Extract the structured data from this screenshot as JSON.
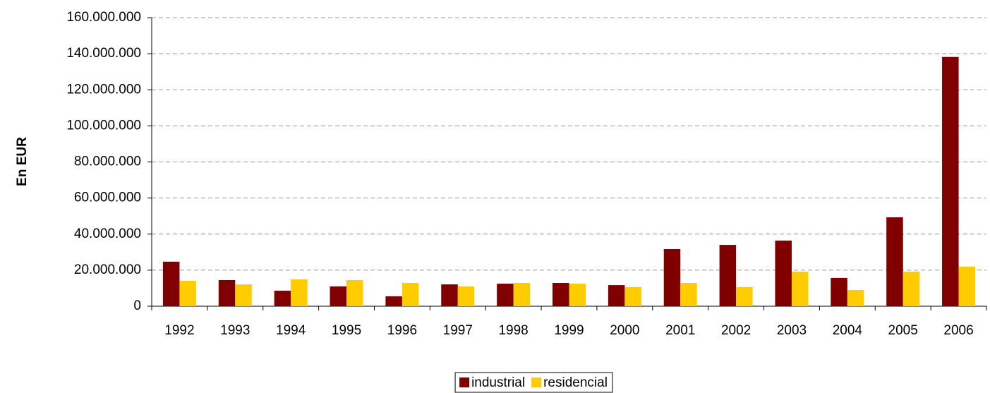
{
  "chart_data": {
    "type": "bar",
    "y_label": "En EUR",
    "categories": [
      "1992",
      "1993",
      "1994",
      "1995",
      "1996",
      "1997",
      "1998",
      "1999",
      "2000",
      "2001",
      "2002",
      "2003",
      "2004",
      "2005",
      "2006"
    ],
    "series": [
      {
        "name": "industrial",
        "color": "#800000",
        "values": [
          24700000,
          14500000,
          8600000,
          11000000,
          5500000,
          12100000,
          12500000,
          12900000,
          11700000,
          31700000,
          34000000,
          36400000,
          15700000,
          49300000,
          138200000
        ]
      },
      {
        "name": "residencial",
        "color": "#ffcc00",
        "values": [
          14100000,
          12100000,
          14900000,
          14500000,
          12900000,
          11000000,
          12900000,
          12500000,
          10600000,
          12900000,
          10600000,
          19200000,
          9000000,
          19200000,
          21900000
        ]
      }
    ],
    "ylim": [
      0,
      160000000
    ],
    "yticks": [
      0,
      {
        "value": 20000000,
        "label": "20.000.000"
      },
      {
        "value": 40000000,
        "label": "40.000.000"
      },
      {
        "value": 60000000,
        "label": "60.000.000"
      },
      {
        "value": 80000000,
        "label": "80.000.000"
      },
      {
        "value": 100000000,
        "label": "100.000.000"
      },
      {
        "value": 120000000,
        "label": "120.000.000"
      },
      {
        "value": 140000000,
        "label": "140.000.000"
      },
      {
        "value": 160000000,
        "label": "160.000.000"
      }
    ],
    "grid": true,
    "legend": "bottom"
  }
}
